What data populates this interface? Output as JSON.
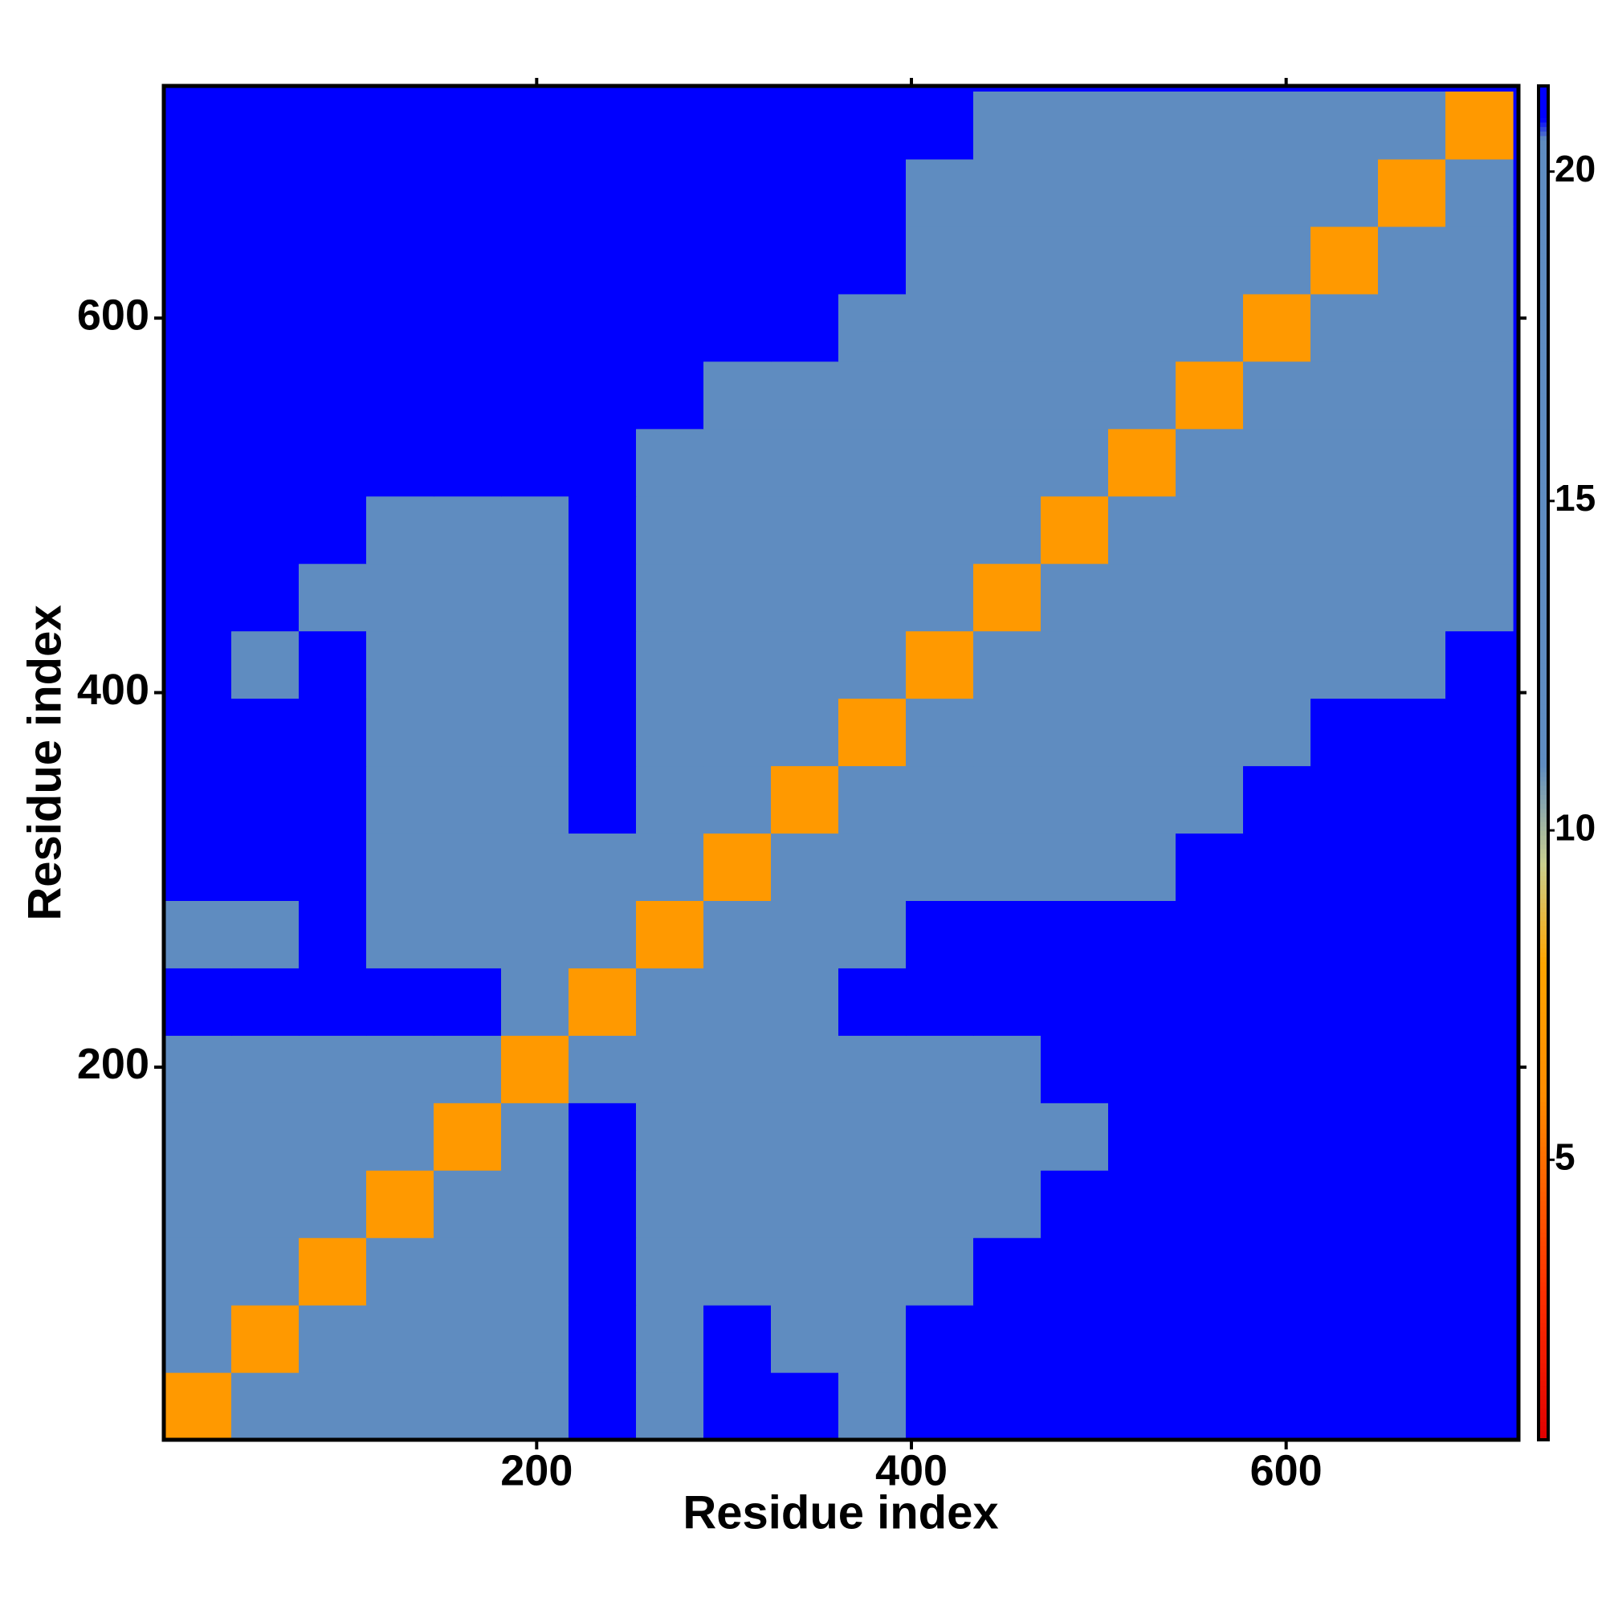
{
  "chart_data": {
    "type": "heatmap",
    "xlabel": "Residue index",
    "ylabel": "Residue index",
    "x": [
      19,
      55,
      91,
      127,
      163,
      199,
      235,
      271,
      307,
      343,
      379,
      415,
      451,
      487,
      523,
      559,
      595,
      631,
      667,
      703
    ],
    "y": [
      19,
      55,
      91,
      127,
      163,
      199,
      235,
      271,
      307,
      343,
      379,
      415,
      451,
      487,
      523,
      559,
      595,
      631,
      667,
      703
    ],
    "z": [
      [
        7,
        15,
        15,
        15,
        15,
        16,
        21,
        20,
        21,
        21,
        20,
        21,
        21,
        21,
        21,
        21,
        21,
        21,
        21,
        21
      ],
      [
        15,
        7,
        15,
        15,
        15,
        16,
        21,
        20,
        21,
        20,
        20,
        21,
        21,
        21,
        21,
        21,
        21,
        21,
        21,
        21
      ],
      [
        15,
        15,
        7,
        15,
        15,
        16,
        21,
        19,
        19,
        19,
        20,
        20,
        21,
        21,
        21,
        21,
        21,
        21,
        21,
        21
      ],
      [
        15,
        15,
        15,
        7,
        15,
        16,
        21,
        19,
        19,
        19,
        19,
        19,
        20,
        21,
        21,
        21,
        21,
        21,
        21,
        21
      ],
      [
        15,
        15,
        15,
        15,
        7,
        16,
        21,
        19,
        19,
        19,
        19,
        19,
        19,
        20,
        21,
        21,
        21,
        21,
        21,
        21
      ],
      [
        16,
        16,
        16,
        16,
        16,
        7,
        17,
        12,
        19,
        19,
        19,
        19,
        20,
        21,
        21,
        21,
        21,
        21,
        21,
        21
      ],
      [
        21,
        21,
        21,
        21,
        21,
        17,
        7,
        14,
        20,
        20,
        21,
        21,
        21,
        21,
        21,
        21,
        21,
        21,
        21,
        21
      ],
      [
        20,
        20,
        21,
        19,
        19,
        12,
        14,
        7,
        17,
        18,
        19,
        21,
        21,
        21,
        21,
        21,
        21,
        21,
        21,
        21
      ],
      [
        21,
        21,
        21,
        19,
        19,
        19,
        20,
        15,
        7,
        15,
        15,
        15,
        16,
        16,
        17,
        21,
        21,
        21,
        21,
        21
      ],
      [
        21,
        21,
        21,
        19,
        19,
        19,
        21,
        16,
        15,
        7,
        15,
        15,
        15,
        15,
        16,
        17,
        21,
        21,
        21,
        21
      ],
      [
        21,
        21,
        21,
        19,
        19,
        19,
        21,
        16,
        15,
        15,
        7,
        15,
        15,
        15,
        15,
        16,
        17,
        21,
        21,
        21
      ],
      [
        21,
        19,
        21,
        19,
        19,
        19,
        21,
        17,
        15,
        15,
        15,
        7,
        15,
        15,
        15,
        15,
        16,
        17,
        18,
        21
      ],
      [
        21,
        21,
        19,
        19,
        19,
        20,
        21,
        18,
        16,
        15,
        15,
        15,
        7,
        15,
        15,
        15,
        15,
        16,
        17,
        19
      ],
      [
        21,
        21,
        21,
        20,
        20,
        20,
        21,
        18,
        16,
        16,
        15,
        15,
        15,
        7,
        15,
        15,
        15,
        15,
        16,
        19
      ],
      [
        21,
        21,
        21,
        21,
        21,
        21,
        21,
        19,
        17,
        16,
        15,
        15,
        15,
        15,
        7,
        15,
        15,
        15,
        16,
        19
      ],
      [
        21,
        21,
        21,
        21,
        21,
        21,
        21,
        21,
        20,
        18,
        16,
        15,
        15,
        15,
        15,
        7,
        15,
        15,
        16,
        19
      ],
      [
        21,
        21,
        21,
        21,
        21,
        21,
        21,
        21,
        21,
        21,
        19,
        16,
        15,
        15,
        15,
        15,
        7,
        15,
        15,
        19
      ],
      [
        21,
        21,
        21,
        21,
        21,
        21,
        21,
        21,
        21,
        21,
        21,
        18,
        16,
        15,
        15,
        15,
        15,
        7,
        15,
        19
      ],
      [
        21,
        21,
        21,
        21,
        21,
        21,
        21,
        21,
        21,
        21,
        21,
        19,
        17,
        16,
        15,
        15,
        15,
        15,
        7,
        15
      ],
      [
        21,
        21,
        21,
        21,
        21,
        21,
        21,
        21,
        21,
        21,
        21,
        21,
        20,
        19,
        18,
        17,
        16,
        16,
        15,
        7
      ]
    ],
    "xlim": [
      1,
      724
    ],
    "ylim": [
      1,
      724
    ],
    "xticks": [
      200,
      400,
      600
    ],
    "yticks": [
      200,
      400,
      600
    ],
    "zlim": [
      0.75,
      21.3
    ],
    "zticks": [
      5,
      10,
      15,
      20
    ],
    "colorscale": [
      [
        0.75,
        "#e00000"
      ],
      [
        3,
        "#ff3000"
      ],
      [
        6,
        "#ff8c00"
      ],
      [
        8,
        "#ffa500"
      ],
      [
        9.5,
        "#c9cf8e"
      ],
      [
        11,
        "#5f8cc0"
      ],
      [
        20.5,
        "#5f8cc0"
      ],
      [
        20.8,
        "#0000ff"
      ]
    ]
  }
}
